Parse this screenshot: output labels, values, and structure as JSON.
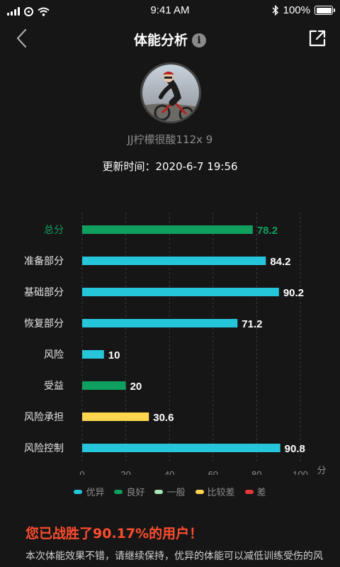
{
  "status_bar": {
    "time": "9:41 AM",
    "battery": "100%"
  },
  "header": {
    "title": "体能分析",
    "info_glyph": "i"
  },
  "profile": {
    "username": "JJ柠檬很酸112x 9"
  },
  "update": {
    "label": "更新时间：2020-6-7 19:56"
  },
  "colors": {
    "优异": "#26c6da",
    "良好": "#0fa060",
    "一般": "#a8e6b8",
    "比较差": "#ffd54f",
    "差": "#e53935"
  },
  "chart_data": {
    "type": "bar",
    "orientation": "horizontal",
    "categories": [
      "总分",
      "准备部分",
      "基础部分",
      "恢复部分",
      "风险",
      "受益",
      "风险承担",
      "风险控制"
    ],
    "values": [
      78.2,
      84.2,
      90.2,
      71.2,
      10,
      20,
      30.6,
      90.8
    ],
    "labels": [
      "78.2",
      "84.2",
      "90.2",
      "71.2",
      "10",
      "20",
      "30.6",
      "90.8"
    ],
    "levels": [
      "良好",
      "优异",
      "优异",
      "优异",
      "优异",
      "良好",
      "比较差",
      "优异"
    ],
    "highlight_index": 0,
    "xlim": [
      0,
      100
    ],
    "xticks": [
      "0",
      "20",
      "40",
      "60",
      "80",
      "100"
    ],
    "xlabel": "分数",
    "grid": "vertical-dashed"
  },
  "legend": [
    {
      "label": "优异",
      "color": "#26c6da"
    },
    {
      "label": "良好",
      "color": "#0fa060"
    },
    {
      "label": "一般",
      "color": "#a8e6b8"
    },
    {
      "label": "比较差",
      "color": "#ffd54f"
    },
    {
      "label": "差",
      "color": "#e53935"
    }
  ],
  "summary": {
    "headline": "您已战胜了90.17%的用户！",
    "description": "本次体能效果不错，请继续保持，优异的体能可以减低训练受伤的风险，加油"
  }
}
